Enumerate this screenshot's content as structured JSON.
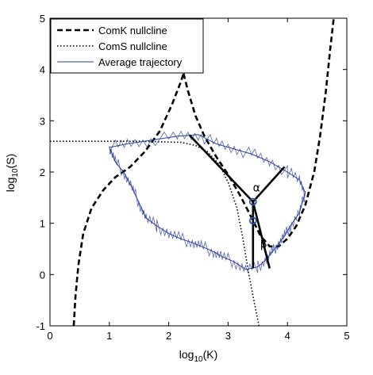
{
  "chart_data": {
    "type": "line",
    "title": "",
    "xlabel_base": "log",
    "xlabel_sub": "10",
    "xlabel_arg": "(K)",
    "ylabel_base": "log",
    "ylabel_sub": "10",
    "ylabel_arg": "(S)",
    "xlim": [
      0,
      5
    ],
    "ylim": [
      -1,
      5
    ],
    "x_ticks": [
      "0",
      "1",
      "2",
      "3",
      "4",
      "5"
    ],
    "y_ticks": [
      "-1",
      "0",
      "1",
      "2",
      "3",
      "4",
      "5"
    ],
    "grid": false,
    "legend_position": "top-left",
    "colors": {
      "comk": "#000000",
      "coms": "#000000",
      "trajectory": "#2b3f9e",
      "markers": "#2b5aa8"
    },
    "series": [
      {
        "name": "ComK nullcline",
        "style": "dashed",
        "segments": [
          [
            [
              0.4,
              -1.0
            ],
            [
              0.43,
              -0.4
            ],
            [
              0.48,
              0.2
            ],
            [
              0.56,
              0.8
            ],
            [
              0.7,
              1.3
            ],
            [
              0.9,
              1.65
            ],
            [
              1.1,
              1.9
            ],
            [
              1.35,
              2.1
            ],
            [
              1.6,
              2.4
            ],
            [
              1.85,
              2.8
            ],
            [
              2.05,
              3.3
            ],
            [
              2.2,
              3.75
            ],
            [
              2.25,
              3.92
            ]
          ],
          [
            [
              2.25,
              3.92
            ],
            [
              2.32,
              3.6
            ],
            [
              2.45,
              3.1
            ],
            [
              2.6,
              2.7
            ],
            [
              2.8,
              2.3
            ],
            [
              3.0,
              1.95
            ],
            [
              3.2,
              1.55
            ],
            [
              3.4,
              1.1
            ],
            [
              3.55,
              0.75
            ],
            [
              3.7,
              0.55
            ],
            [
              3.85,
              0.55
            ],
            [
              4.0,
              0.7
            ],
            [
              4.15,
              0.95
            ],
            [
              4.3,
              1.35
            ],
            [
              4.45,
              2.0
            ],
            [
              4.55,
              2.7
            ],
            [
              4.65,
              3.6
            ],
            [
              4.72,
              4.4
            ],
            [
              4.78,
              5.0
            ]
          ]
        ]
      },
      {
        "name": "ComS nullcline",
        "style": "dotted",
        "segments": [
          [
            [
              0.0,
              2.6
            ],
            [
              1.5,
              2.6
            ],
            [
              2.2,
              2.58
            ],
            [
              2.45,
              2.52
            ],
            [
              2.65,
              2.4
            ],
            [
              2.85,
              2.15
            ],
            [
              3.0,
              1.8
            ],
            [
              3.15,
              1.3
            ],
            [
              3.25,
              0.7
            ],
            [
              3.35,
              0.0
            ],
            [
              3.45,
              -0.6
            ],
            [
              3.52,
              -1.0
            ]
          ]
        ]
      },
      {
        "name": "Average trajectory",
        "style": "solid",
        "segments": [
          [
            [
              1.0,
              2.48
            ],
            [
              1.3,
              2.55
            ],
            [
              1.7,
              2.62
            ],
            [
              2.15,
              2.7
            ],
            [
              2.5,
              2.73
            ],
            [
              2.8,
              2.55
            ],
            [
              3.1,
              2.45
            ],
            [
              3.4,
              2.35
            ],
            [
              3.7,
              2.2
            ],
            [
              4.0,
              2.0
            ],
            [
              4.2,
              1.85
            ],
            [
              4.3,
              1.6
            ],
            [
              4.2,
              1.2
            ],
            [
              4.05,
              0.95
            ],
            [
              3.95,
              0.75
            ],
            [
              3.85,
              0.6
            ],
            [
              3.75,
              0.45
            ],
            [
              3.65,
              0.3
            ],
            [
              3.5,
              0.15
            ],
            [
              3.3,
              0.1
            ],
            [
              3.1,
              0.25
            ],
            [
              2.9,
              0.35
            ],
            [
              2.75,
              0.45
            ],
            [
              2.55,
              0.55
            ],
            [
              2.4,
              0.62
            ],
            [
              2.2,
              0.7
            ],
            [
              2.0,
              0.8
            ],
            [
              1.8,
              0.95
            ],
            [
              1.62,
              1.1
            ],
            [
              1.5,
              1.4
            ],
            [
              1.38,
              1.7
            ],
            [
              1.25,
              1.98
            ],
            [
              1.1,
              2.2
            ],
            [
              1.0,
              2.48
            ]
          ]
        ]
      }
    ],
    "annotations": [
      {
        "text": "α",
        "x": 3.48,
        "y": 1.62
      },
      {
        "text": "β",
        "x": 3.6,
        "y": 0.52
      }
    ],
    "solid_segments": [
      [
        [
          2.35,
          2.72
        ],
        [
          3.42,
          1.42
        ]
      ],
      [
        [
          3.42,
          1.42
        ],
        [
          3.95,
          2.1
        ]
      ],
      [
        [
          3.42,
          1.42
        ],
        [
          3.42,
          0.12
        ]
      ],
      [
        [
          3.42,
          1.42
        ],
        [
          3.7,
          0.12
        ]
      ]
    ],
    "markers": [
      {
        "x": 3.42,
        "y": 1.42
      },
      {
        "x": 3.42,
        "y": 1.05
      }
    ]
  }
}
